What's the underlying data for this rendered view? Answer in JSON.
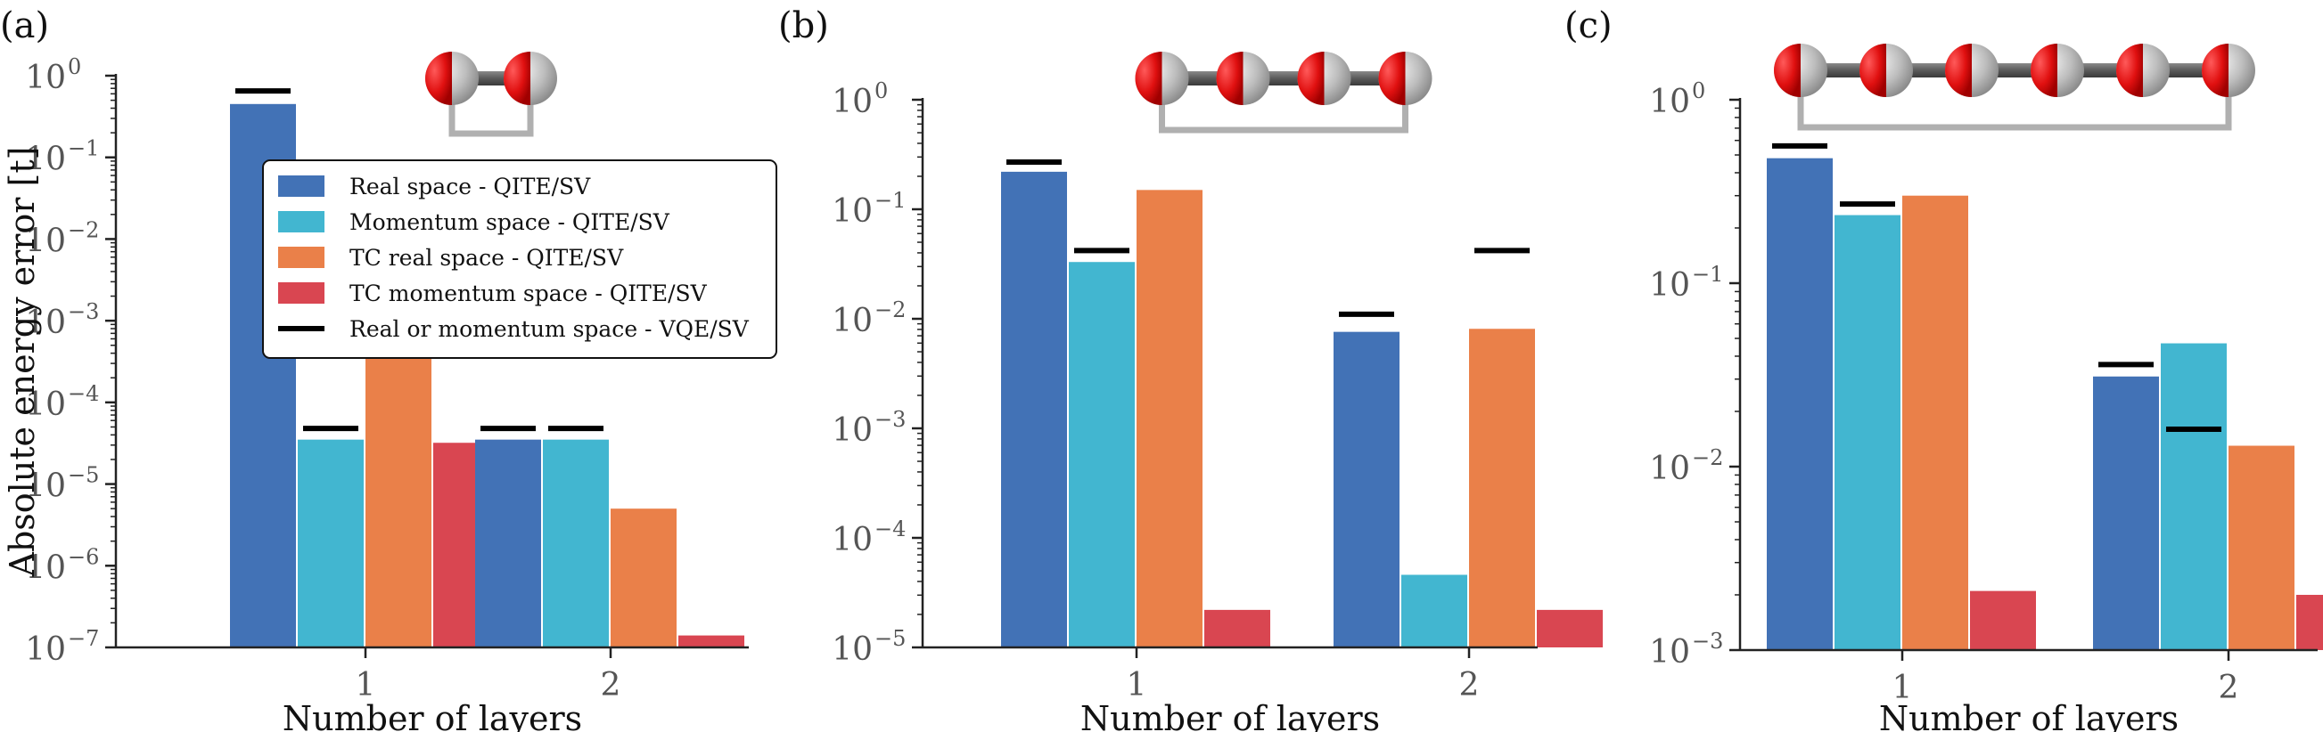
{
  "colors": {
    "real": "#4272b6",
    "momentum": "#42b6d0",
    "tc_real": "#ea8049",
    "tc_momentum": "#d94651",
    "vqe": "#000000",
    "axis": "#222222",
    "bond": "#555555",
    "bracket": "#b0b0b0",
    "atom_red": "#e01010",
    "atom_grey": "#c0c0c0"
  },
  "legend": {
    "items": [
      {
        "label": "Real space - QITE/SV",
        "color_key": "real",
        "kind": "patch"
      },
      {
        "label": "Momentum space - QITE/SV",
        "color_key": "momentum",
        "kind": "patch"
      },
      {
        "label": "TC real space - QITE/SV",
        "color_key": "tc_real",
        "kind": "patch"
      },
      {
        "label": "TC momentum space - QITE/SV",
        "color_key": "tc_momentum",
        "kind": "patch"
      },
      {
        "label": "Real or momentum space - VQE/SV",
        "color_key": "vqe",
        "kind": "line"
      }
    ]
  },
  "chart_data": [
    {
      "panel": "(a)",
      "type": "bar",
      "yscale": "log",
      "ylabel": "Absolute energy error [t]",
      "xlabel": "Number of layers",
      "categories": [
        "1",
        "2"
      ],
      "ylim": [
        1e-07,
        1
      ],
      "yticks": [
        {
          "base": "10",
          "exp": "0"
        },
        {
          "base": "10",
          "exp": "−1"
        },
        {
          "base": "10",
          "exp": "−2"
        },
        {
          "base": "10",
          "exp": "−3"
        },
        {
          "base": "10",
          "exp": "−4"
        },
        {
          "base": "10",
          "exp": "−5"
        },
        {
          "base": "10",
          "exp": "−6"
        },
        {
          "base": "10",
          "exp": "−7"
        }
      ],
      "molecule_atoms": 2,
      "series": [
        {
          "name": "Real space - QITE/SV",
          "color_key": "real",
          "values": [
            0.45,
            3.5e-05
          ]
        },
        {
          "name": "Momentum space - QITE/SV",
          "color_key": "momentum",
          "values": [
            3.5e-05,
            3.5e-05
          ]
        },
        {
          "name": "TC real space - QITE/SV",
          "color_key": "tc_real",
          "values": [
            0.00038,
            5e-06
          ]
        },
        {
          "name": "TC momentum space - QITE/SV",
          "color_key": "tc_momentum",
          "values": [
            3.2e-05,
            1.4e-07
          ]
        }
      ],
      "vqe_markers": [
        {
          "category": "1",
          "bar": 0,
          "value": 0.65
        },
        {
          "category": "1",
          "bar": 1,
          "value": 4.8e-05
        },
        {
          "category": "2",
          "bar": 0,
          "value": 4.8e-05
        },
        {
          "category": "2",
          "bar": 1,
          "value": 4.8e-05
        }
      ]
    },
    {
      "panel": "(b)",
      "type": "bar",
      "yscale": "log",
      "ylabel": "",
      "xlabel": "Number of layers",
      "categories": [
        "1",
        "2"
      ],
      "ylim": [
        1e-05,
        1
      ],
      "yticks": [
        {
          "base": "10",
          "exp": "0"
        },
        {
          "base": "10",
          "exp": "−1"
        },
        {
          "base": "10",
          "exp": "−2"
        },
        {
          "base": "10",
          "exp": "−3"
        },
        {
          "base": "10",
          "exp": "−4"
        },
        {
          "base": "10",
          "exp": "−5"
        }
      ],
      "molecule_atoms": 4,
      "series": [
        {
          "name": "Real space - QITE/SV",
          "color_key": "real",
          "values": [
            0.22,
            0.0076
          ]
        },
        {
          "name": "Momentum space - QITE/SV",
          "color_key": "momentum",
          "values": [
            0.033,
            4.6e-05
          ]
        },
        {
          "name": "TC real space - QITE/SV",
          "color_key": "tc_real",
          "values": [
            0.15,
            0.0081
          ]
        },
        {
          "name": "TC momentum space - QITE/SV",
          "color_key": "tc_momentum",
          "values": [
            2.2e-05,
            2.2e-05
          ]
        }
      ],
      "vqe_markers": [
        {
          "category": "1",
          "bar": 0,
          "value": 0.27
        },
        {
          "category": "1",
          "bar": 1,
          "value": 0.042
        },
        {
          "category": "2",
          "bar": 0,
          "value": 0.011
        },
        {
          "category": "2",
          "bar": 2,
          "value": 0.042
        }
      ]
    },
    {
      "panel": "(c)",
      "type": "bar",
      "yscale": "log",
      "ylabel": "",
      "xlabel": "Number of layers",
      "categories": [
        "1",
        "2"
      ],
      "ylim": [
        0.001,
        1
      ],
      "yticks": [
        {
          "base": "10",
          "exp": "0"
        },
        {
          "base": "10",
          "exp": "−1"
        },
        {
          "base": "10",
          "exp": "−2"
        },
        {
          "base": "10",
          "exp": "−3"
        }
      ],
      "molecule_atoms": 6,
      "series": [
        {
          "name": "Real space - QITE/SV",
          "color_key": "real",
          "values": [
            0.48,
            0.031
          ]
        },
        {
          "name": "Momentum space - QITE/SV",
          "color_key": "momentum",
          "values": [
            0.235,
            0.047
          ]
        },
        {
          "name": "TC real space - QITE/SV",
          "color_key": "tc_real",
          "values": [
            0.3,
            0.013
          ]
        },
        {
          "name": "TC momentum space - QITE/SV",
          "color_key": "tc_momentum",
          "values": [
            0.0021,
            0.002
          ]
        }
      ],
      "vqe_markers": [
        {
          "category": "1",
          "bar": 0,
          "value": 0.56
        },
        {
          "category": "1",
          "bar": 1,
          "value": 0.27
        },
        {
          "category": "2",
          "bar": 0,
          "value": 0.036
        },
        {
          "category": "2",
          "bar": 1,
          "value": 0.016
        }
      ]
    }
  ]
}
